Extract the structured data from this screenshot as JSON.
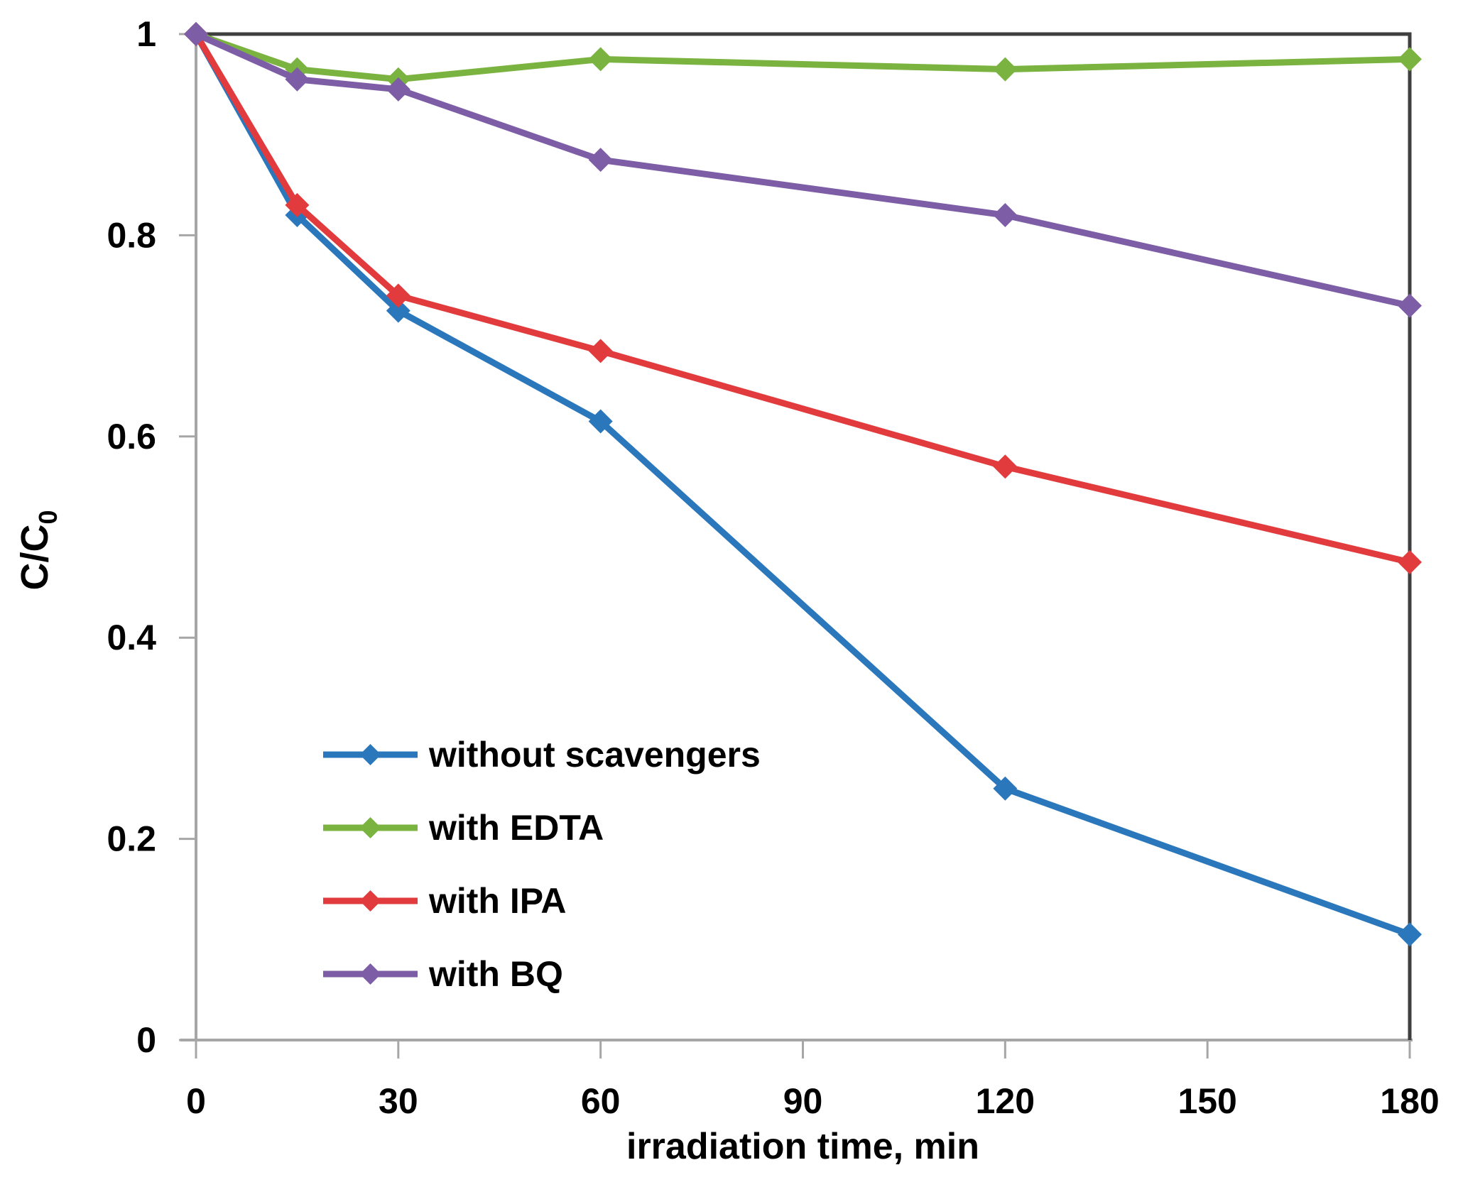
{
  "figure": {
    "description": "Photocatalytic degradation scavenger test line chart"
  },
  "chart_data": {
    "type": "line",
    "x": [
      0,
      15,
      30,
      60,
      120,
      180
    ],
    "series": [
      {
        "name": "without scavengers",
        "color": "#2B77BC",
        "values": [
          1.0,
          0.82,
          0.725,
          0.615,
          0.25,
          0.105
        ]
      },
      {
        "name": "with EDTA",
        "color": "#7AB33F",
        "values": [
          1.0,
          0.965,
          0.955,
          0.975,
          0.965,
          0.975
        ]
      },
      {
        "name": "with IPA",
        "color": "#E23B3E",
        "values": [
          1.0,
          0.83,
          0.74,
          0.685,
          0.57,
          0.475
        ]
      },
      {
        "name": "with BQ",
        "color": "#7C5DA6",
        "values": [
          1.0,
          0.955,
          0.945,
          0.875,
          0.82,
          0.73
        ]
      }
    ],
    "title": "",
    "xlabel": "irradiation time, min",
    "ylabel": "C/C",
    "ylabel_subscript": "0",
    "xlim": [
      0,
      180
    ],
    "ylim": [
      0,
      1
    ],
    "x_ticks": [
      0,
      30,
      60,
      90,
      120,
      150,
      180
    ],
    "x_tick_labels": [
      "0",
      "30",
      "60",
      "90",
      "120",
      "150",
      "180"
    ],
    "y_ticks": [
      0,
      0.2,
      0.4,
      0.6,
      0.8,
      1
    ],
    "y_tick_labels": [
      "0",
      "0.2",
      "0.4",
      "0.6",
      "0.8",
      "1"
    ],
    "grid": false,
    "marker": "diamond",
    "legend_position": "inside-lower-left",
    "axis_color": "#A6A6A6",
    "border_color": "#3F3F3F",
    "text_color": "#000000",
    "background_color": "#FFFFFF"
  }
}
